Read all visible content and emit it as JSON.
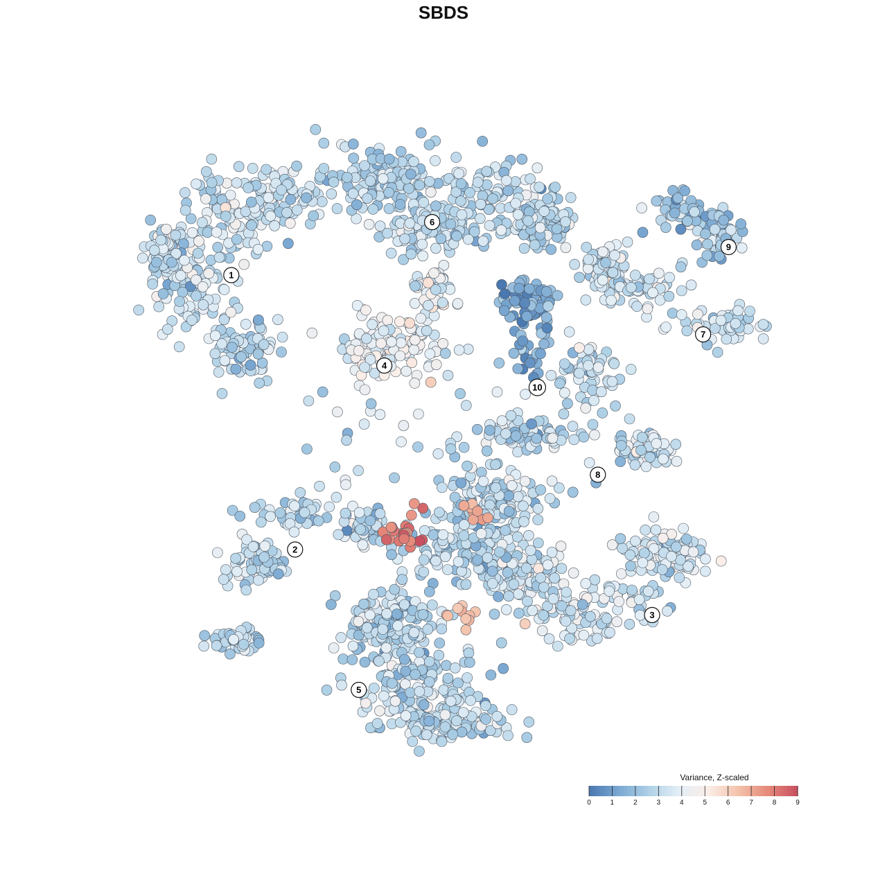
{
  "chart_data": {
    "type": "scatter",
    "title": "SBDS",
    "xlabel": "",
    "ylabel": "",
    "axes_visible": false,
    "grid": false,
    "colormap": [
      "#4a78b0",
      "#7aa8d2",
      "#aed0e6",
      "#e3eef6",
      "#fbeee8",
      "#f4c2ab",
      "#e68a7a",
      "#c85060"
    ],
    "legend": {
      "title": "Variance, Z-scaled",
      "placement": "bottom-right",
      "ticks": [
        "0",
        "1",
        "2",
        "3",
        "4",
        "5",
        "6",
        "7",
        "8",
        "9"
      ],
      "range": [
        0,
        9
      ]
    },
    "xlim": [
      0,
      100
    ],
    "ylim": [
      0,
      100
    ],
    "clusters": [
      {
        "label": "1",
        "x": 14.0,
        "y": 77.0,
        "mean_value": 3.2
      },
      {
        "label": "2",
        "x": 24.0,
        "y": 33.0,
        "mean_value": 3.0
      },
      {
        "label": "3",
        "x": 80.0,
        "y": 22.5,
        "mean_value": 3.4
      },
      {
        "label": "4",
        "x": 38.0,
        "y": 62.5,
        "mean_value": 4.2
      },
      {
        "label": "5",
        "x": 34.0,
        "y": 10.5,
        "mean_value": 2.9
      },
      {
        "label": "6",
        "x": 45.5,
        "y": 85.5,
        "mean_value": 2.9
      },
      {
        "label": "7",
        "x": 88.0,
        "y": 67.5,
        "mean_value": 3.4
      },
      {
        "label": "8",
        "x": 71.5,
        "y": 45.0,
        "mean_value": 3.1
      },
      {
        "label": "9",
        "x": 92.0,
        "y": 81.5,
        "mean_value": 2.3
      },
      {
        "label": "10",
        "x": 62.0,
        "y": 59.0,
        "mean_value": 1.3
      }
    ]
  }
}
